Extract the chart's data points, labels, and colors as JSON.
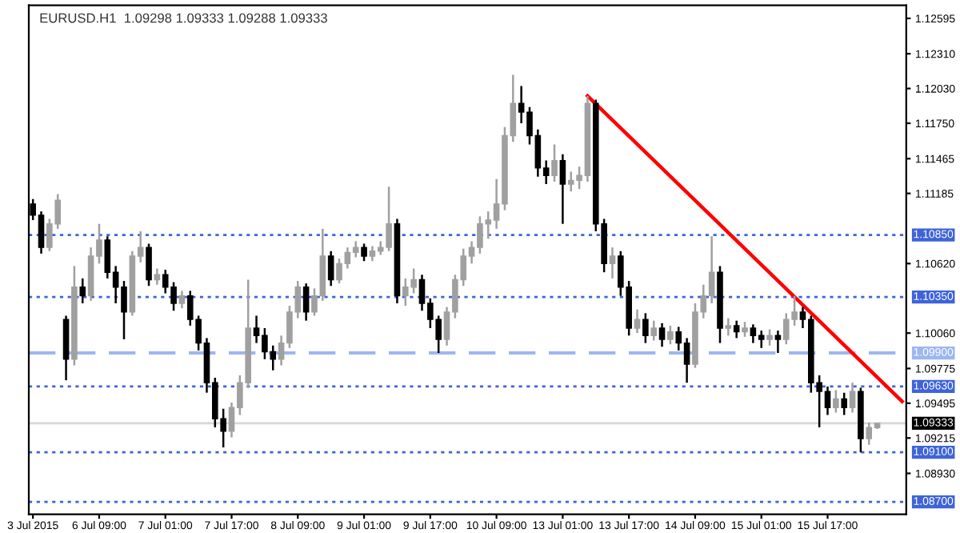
{
  "chart_data": {
    "type": "candlestick",
    "title": "EURUSD.H1  1.09298 1.09333 1.09288 1.09333",
    "categories": [
      "3 Jul 2015",
      null,
      null,
      null,
      null,
      null,
      null,
      null,
      "6 Jul 09:00",
      null,
      null,
      null,
      null,
      null,
      null,
      null,
      "7 Jul 01:00",
      null,
      null,
      null,
      null,
      null,
      null,
      null,
      "7 Jul 17:00",
      null,
      null,
      null,
      null,
      null,
      null,
      null,
      "8 Jul 09:00",
      null,
      null,
      null,
      null,
      null,
      null,
      null,
      "9 Jul 01:00",
      null,
      null,
      null,
      null,
      null,
      null,
      null,
      "9 Jul 17:00",
      null,
      null,
      null,
      null,
      null,
      null,
      null,
      "10 Jul 09:00",
      null,
      null,
      null,
      null,
      null,
      null,
      null,
      "13 Jul 01:00",
      null,
      null,
      null,
      null,
      null,
      null,
      null,
      "13 Jul 17:00",
      null,
      null,
      null,
      null,
      null,
      null,
      null,
      "14 Jul 09:00",
      null,
      null,
      null,
      null,
      null,
      null,
      null,
      "15 Jul 01:00",
      null,
      null,
      null,
      null,
      null,
      null,
      null,
      "15 Jul 17:00",
      null,
      null,
      null,
      null,
      null,
      null,
      null,
      null,
      null
    ],
    "colors": [
      "#000000",
      "#000000",
      "#a0a0a0",
      "#a0a0a0",
      "#000000",
      "#a0a0a0",
      "#000000",
      "#a0a0a0",
      "#a0a0a0",
      "#000000",
      "#000000",
      "#000000",
      "#a0a0a0",
      "#a0a0a0",
      "#000000",
      "#a0a0a0",
      "#000000",
      "#000000",
      "#a0a0a0",
      "#000000",
      "#000000",
      "#000000",
      "#000000",
      "#000000",
      "#a0a0a0",
      "#a0a0a0",
      "#a0a0a0",
      "#000000",
      "#000000",
      "#000000",
      "#a0a0a0",
      "#a0a0a0",
      "#a0a0a0",
      "#000000",
      "#a0a0a0",
      "#a0a0a0",
      "#000000",
      "#a0a0a0",
      "#a0a0a0",
      "#a0a0a0",
      "#000000",
      "#a0a0a0",
      "#a0a0a0",
      "#a0a0a0",
      "#000000",
      "#a0a0a0",
      "#a0a0a0",
      "#000000",
      "#000000",
      "#000000",
      "#a0a0a0",
      "#a0a0a0",
      "#a0a0a0",
      "#a0a0a0",
      "#a0a0a0",
      "#a0a0a0",
      "#a0a0a0",
      "#a0a0a0",
      "#a0a0a0",
      "#000000",
      "#000000",
      "#000000",
      "#000000",
      "#a0a0a0",
      "#000000",
      "#a0a0a0",
      "#a0a0a0",
      "#a0a0a0",
      "#000000",
      "#000000",
      "#a0a0a0",
      "#000000",
      "#000000",
      "#a0a0a0",
      "#000000",
      "#a0a0a0",
      "#000000",
      "#a0a0a0",
      "#000000",
      "#000000",
      "#a0a0a0",
      "#a0a0a0",
      "#a0a0a0",
      "#000000",
      "#a0a0a0",
      "#000000",
      "#a0a0a0",
      "#000000",
      "#000000",
      "#a0a0a0",
      "#000000",
      "#a0a0a0",
      "#a0a0a0",
      "#000000",
      "#000000",
      "#000000",
      "#000000",
      "#a0a0a0",
      "#000000",
      "#a0a0a0",
      "#000000",
      "#a0a0a0",
      "#a0a0a0",
      null,
      null,
      null
    ],
    "ohlc": [
      [
        1.111,
        1.1114,
        1.1097,
        1.1101
      ],
      [
        1.1101,
        1.1104,
        1.107,
        1.1075
      ],
      [
        1.1075,
        1.1098,
        1.1072,
        1.1094
      ],
      [
        1.1094,
        1.1118,
        1.109,
        1.1113
      ],
      [
        1.1017,
        1.102,
        1.0968,
        1.0985
      ],
      [
        1.0985,
        1.106,
        1.098,
        1.1043
      ],
      [
        1.1043,
        1.105,
        1.103,
        1.1036
      ],
      [
        1.1036,
        1.1075,
        1.1032,
        1.1068
      ],
      [
        1.1068,
        1.1094,
        1.1062,
        1.1081
      ],
      [
        1.1081,
        1.1084,
        1.105,
        1.1055
      ],
      [
        1.1055,
        1.106,
        1.103,
        1.1043
      ],
      [
        1.1043,
        1.1048,
        1.1001,
        1.1023
      ],
      [
        1.1023,
        1.1072,
        1.102,
        1.1068
      ],
      [
        1.1068,
        1.1088,
        1.1063,
        1.1075
      ],
      [
        1.1075,
        1.1078,
        1.1044,
        1.1049
      ],
      [
        1.1049,
        1.1058,
        1.1045,
        1.1053
      ],
      [
        1.1053,
        1.1057,
        1.1038,
        1.1043
      ],
      [
        1.1043,
        1.1047,
        1.1024,
        1.103
      ],
      [
        1.103,
        1.104,
        1.1026,
        1.1036
      ],
      [
        1.1036,
        1.104,
        1.1012,
        1.1017
      ],
      [
        1.1017,
        1.102,
        1.0992,
        1.0998
      ],
      [
        1.0998,
        1.1002,
        1.0958,
        1.0966
      ],
      [
        1.0966,
        1.097,
        1.093,
        1.0937
      ],
      [
        1.0937,
        1.0945,
        1.0914,
        1.0927
      ],
      [
        1.0927,
        1.095,
        1.0922,
        1.0946
      ],
      [
        1.0946,
        1.0972,
        1.094,
        1.0966
      ],
      [
        1.0966,
        1.1049,
        1.0962,
        1.101
      ],
      [
        1.101,
        1.102,
        1.0998,
        1.1004
      ],
      [
        1.1004,
        1.101,
        1.0985,
        1.0991
      ],
      [
        1.0991,
        1.0996,
        1.0976,
        1.0985
      ],
      [
        1.0985,
        1.1004,
        1.098,
        1.0998
      ],
      [
        1.0998,
        1.1028,
        1.0994,
        1.1023
      ],
      [
        1.1023,
        1.1048,
        1.1018,
        1.1043
      ],
      [
        1.1043,
        1.1046,
        1.1016,
        1.1023
      ],
      [
        1.1023,
        1.1042,
        1.102,
        1.1036
      ],
      [
        1.1036,
        1.109,
        1.1032,
        1.1068
      ],
      [
        1.1068,
        1.1072,
        1.1044,
        1.1049
      ],
      [
        1.1049,
        1.1066,
        1.1046,
        1.1062
      ],
      [
        1.1062,
        1.1075,
        1.1058,
        1.1071
      ],
      [
        1.1071,
        1.108,
        1.1067,
        1.1075
      ],
      [
        1.1075,
        1.1078,
        1.1064,
        1.1068
      ],
      [
        1.1068,
        1.1076,
        1.1064,
        1.1072
      ],
      [
        1.1072,
        1.108,
        1.1069,
        1.1075
      ],
      [
        1.1075,
        1.1124,
        1.1072,
        1.1094
      ],
      [
        1.1094,
        1.1098,
        1.103,
        1.1036
      ],
      [
        1.1036,
        1.105,
        1.1028,
        1.1043
      ],
      [
        1.1043,
        1.1058,
        1.1038,
        1.1049
      ],
      [
        1.1049,
        1.1053,
        1.1024,
        1.103
      ],
      [
        1.103,
        1.1034,
        1.101,
        1.1017
      ],
      [
        1.1017,
        1.102,
        1.099,
        1.1001
      ],
      [
        1.1001,
        1.1027,
        1.0996,
        1.1023
      ],
      [
        1.1023,
        1.1053,
        1.1018,
        1.1049
      ],
      [
        1.1049,
        1.1074,
        1.1044,
        1.1068
      ],
      [
        1.1068,
        1.108,
        1.1062,
        1.1075
      ],
      [
        1.1075,
        1.11,
        1.107,
        1.1094
      ],
      [
        1.1094,
        1.1104,
        1.1082,
        1.1097
      ],
      [
        1.1097,
        1.113,
        1.109,
        1.111
      ],
      [
        1.111,
        1.1172,
        1.1105,
        1.1165
      ],
      [
        1.1165,
        1.1214,
        1.116,
        1.1191
      ],
      [
        1.1191,
        1.1205,
        1.1175,
        1.1184
      ],
      [
        1.1184,
        1.1188,
        1.1158,
        1.1165
      ],
      [
        1.1165,
        1.117,
        1.1132,
        1.1139
      ],
      [
        1.1139,
        1.1145,
        1.1126,
        1.1133
      ],
      [
        1.1133,
        1.1158,
        1.1128,
        1.1145
      ],
      [
        1.1145,
        1.115,
        1.1094,
        1.1126
      ],
      [
        1.1126,
        1.1136,
        1.112,
        1.1129
      ],
      [
        1.1129,
        1.114,
        1.1122,
        1.1133
      ],
      [
        1.1133,
        1.1197,
        1.1128,
        1.1191
      ],
      [
        1.1191,
        1.1194,
        1.1088,
        1.1094
      ],
      [
        1.1094,
        1.1098,
        1.1055,
        1.1062
      ],
      [
        1.1062,
        1.1075,
        1.105,
        1.1068
      ],
      [
        1.1068,
        1.1072,
        1.1036,
        1.1043
      ],
      [
        1.1043,
        1.1048,
        1.1004,
        1.101
      ],
      [
        1.101,
        1.1025,
        1.1006,
        1.1017
      ],
      [
        1.1017,
        1.1022,
        1.0998,
        1.1004
      ],
      [
        1.1004,
        1.1016,
        1.1,
        1.101
      ],
      [
        1.101,
        1.1014,
        1.0995,
        1.1001
      ],
      [
        1.1001,
        1.1012,
        1.0997,
        1.1007
      ],
      [
        1.1007,
        1.1011,
        1.0992,
        1.0998
      ],
      [
        1.0998,
        1.1002,
        1.0966,
        1.0981
      ],
      [
        1.0981,
        1.103,
        1.0978,
        1.1023
      ],
      [
        1.1023,
        1.1045,
        1.1018,
        1.1036
      ],
      [
        1.1036,
        1.1084,
        1.103,
        1.1055
      ],
      [
        1.1055,
        1.106,
        1.0998,
        1.101
      ],
      [
        1.101,
        1.1018,
        1.1004,
        1.1012
      ],
      [
        1.1012,
        1.1016,
        1.1002,
        1.1007
      ],
      [
        1.1007,
        1.1015,
        1.1003,
        1.101
      ],
      [
        1.101,
        1.1013,
        1.0998,
        1.1004
      ],
      [
        1.1004,
        1.1008,
        1.0994,
        1.1001
      ],
      [
        1.1001,
        1.1009,
        1.0996,
        1.1004
      ],
      [
        1.1004,
        1.1008,
        1.099,
        1.1001
      ],
      [
        1.1001,
        1.1022,
        1.0997,
        1.1017
      ],
      [
        1.1017,
        1.1036,
        1.1012,
        1.1023
      ],
      [
        1.1023,
        1.1027,
        1.101,
        1.1017
      ],
      [
        1.1017,
        1.102,
        1.0958,
        1.0966
      ],
      [
        1.0966,
        1.0972,
        1.093,
        1.0959
      ],
      [
        1.0959,
        1.0963,
        1.094,
        1.0946
      ],
      [
        1.0946,
        1.096,
        1.0942,
        1.0953
      ],
      [
        1.0953,
        1.0958,
        1.094,
        1.0946
      ],
      [
        1.0946,
        1.0966,
        1.0942,
        1.0959
      ],
      [
        1.0959,
        1.0962,
        1.091,
        1.0921
      ],
      [
        1.0921,
        1.0934,
        1.0916,
        1.093
      ],
      [
        1.09298,
        1.09333,
        1.09288,
        1.09333
      ],
      null,
      null,
      null
    ],
    "series": [
      {
        "type": "line",
        "color": "#ff0000",
        "values": [
          null,
          null,
          null,
          null,
          null,
          null,
          null,
          null,
          null,
          null,
          null,
          null,
          null,
          null,
          null,
          null,
          null,
          null,
          null,
          null,
          null,
          null,
          null,
          null,
          null,
          null,
          null,
          null,
          null,
          null,
          null,
          null,
          null,
          null,
          null,
          null,
          null,
          null,
          null,
          null,
          null,
          null,
          null,
          null,
          null,
          null,
          null,
          null,
          null,
          null,
          null,
          null,
          null,
          null,
          null,
          null,
          null,
          null,
          null,
          null,
          null,
          null,
          null,
          null,
          null,
          null,
          null,
          1.1197,
          null,
          null,
          null,
          null,
          null,
          null,
          null,
          null,
          null,
          null,
          null,
          null,
          null,
          null,
          null,
          null,
          null,
          null,
          null,
          null,
          null,
          null,
          null,
          null,
          null,
          null,
          null,
          null,
          null,
          null,
          null,
          null,
          null,
          null,
          null,
          null,
          null,
          1.0951
        ]
      }
    ],
    "ylim": [
      1.086,
      1.127
    ],
    "yticks": [
      {
        "value": 1.12595,
        "label": "1.12595"
      },
      {
        "value": 1.1231,
        "label": "1.12310"
      },
      {
        "value": 1.1203,
        "label": "1.12030"
      },
      {
        "value": 1.1175,
        "label": "1.11750"
      },
      {
        "value": 1.11465,
        "label": "1.11465"
      },
      {
        "value": 1.11185,
        "label": "1.11185"
      },
      {
        "value": 1.1062,
        "label": "1.10620"
      },
      {
        "value": 1.1006,
        "label": "1.10060"
      },
      {
        "value": 1.09775,
        "label": "1.09775"
      },
      {
        "value": 1.09495,
        "label": "1.09495"
      },
      {
        "value": 1.09215,
        "label": "1.09215"
      },
      {
        "value": 1.0893,
        "label": "1.08930"
      }
    ],
    "ref_lines": [
      {
        "axis": "y",
        "value": 1.1085,
        "label": "1.10850",
        "color": "#3f64d8",
        "line_style": "dotted"
      },
      {
        "axis": "y",
        "value": 1.1035,
        "label": "1.10350",
        "color": "#3f64d8",
        "line_style": "dotted"
      },
      {
        "axis": "y",
        "value": 1.099,
        "label": "1.09900",
        "color": "#9db6f0",
        "line_style": "dashed"
      },
      {
        "axis": "y",
        "value": 1.0963,
        "label": "1.09630",
        "color": "#3f64d8",
        "line_style": "dotted"
      },
      {
        "axis": "y",
        "value": 1.09333,
        "label": "1.09333",
        "color": "#d8d8d8",
        "line_style": "solid"
      },
      {
        "axis": "y",
        "value": 1.091,
        "label": "1.09100",
        "color": "#3f64d8",
        "line_style": "dotted"
      },
      {
        "axis": "y",
        "value": 1.087,
        "label": "1.08700",
        "color": "#3f64d8",
        "line_style": "dotted"
      }
    ],
    "grid": false,
    "legend": false
  }
}
